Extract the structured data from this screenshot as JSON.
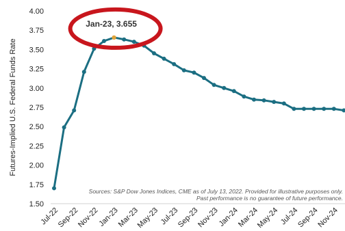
{
  "chart_data": {
    "type": "line",
    "ylabel": "Futures-Implied U.S. Federal Funds Rate",
    "ylim": [
      1.5,
      4.0
    ],
    "yticks": [
      "1.50",
      "1.75",
      "2.00",
      "2.25",
      "2.50",
      "2.75",
      "3.00",
      "3.25",
      "3.50",
      "3.75",
      "4.00"
    ],
    "xtick_labels": [
      "Jul-22",
      "Sep-22",
      "Nov-22",
      "Jan-23",
      "Mar-23",
      "May-23",
      "Jul-23",
      "Sep-23",
      "Nov-23",
      "Jan-24",
      "Mar-24",
      "May-24",
      "Jul-24",
      "Sep-24",
      "Nov-24"
    ],
    "x": [
      "Jul-22",
      "Aug-22",
      "Sep-22",
      "Oct-22",
      "Nov-22",
      "Dec-22",
      "Jan-23",
      "Feb-23",
      "Mar-23",
      "Apr-23",
      "May-23",
      "Jun-23",
      "Jul-23",
      "Aug-23",
      "Sep-23",
      "Oct-23",
      "Nov-23",
      "Dec-23",
      "Jan-24",
      "Feb-24",
      "Mar-24",
      "Apr-24",
      "May-24",
      "Jun-24",
      "Jul-24",
      "Aug-24",
      "Sep-24",
      "Oct-24",
      "Nov-24",
      "Dec-24"
    ],
    "series": [
      {
        "values": [
          1.7,
          2.49,
          2.71,
          3.21,
          3.51,
          3.61,
          3.655,
          3.63,
          3.6,
          3.55,
          3.45,
          3.38,
          3.31,
          3.23,
          3.2,
          3.13,
          3.04,
          3.0,
          2.96,
          2.89,
          2.85,
          2.84,
          2.82,
          2.8,
          2.73,
          2.73,
          2.73,
          2.73,
          2.73,
          2.71
        ]
      }
    ],
    "annotation": {
      "text": "Jan-23, 3.655",
      "x": "Jan-23",
      "y": 3.655
    },
    "source_lines": [
      "Sources: S&P Dow Jones Indices, CME as of July 13, 2022.  Provided for illustrative purposes only.",
      "Past performance is no guarantee of future performance."
    ],
    "grid": false,
    "colors": {
      "line": "#1b6e82",
      "marker": "#1b6e82",
      "highlight_marker": "#e0a33a",
      "circle": "#c8161d",
      "axis": "#d0d0d0"
    }
  }
}
